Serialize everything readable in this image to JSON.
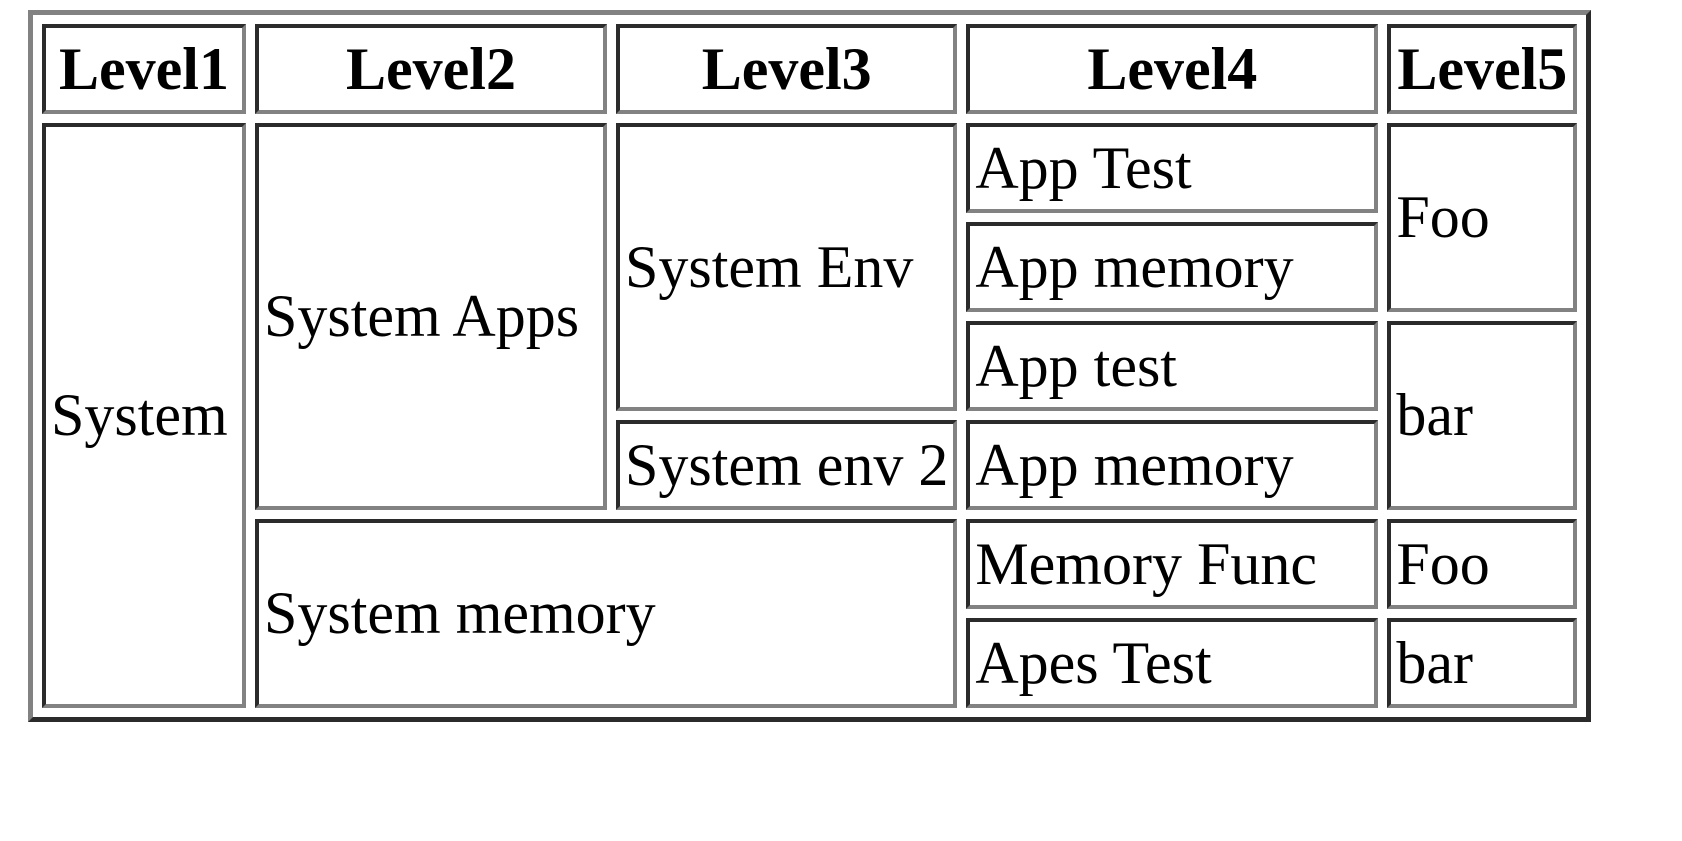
{
  "table": {
    "headers": [
      "Level1",
      "Level2",
      "Level3",
      "Level4",
      "Level5"
    ],
    "rows": [
      {
        "cells": [
          "System",
          "System Apps",
          "System Env",
          "App Test",
          "Foo"
        ]
      },
      {
        "cells": [
          "App memory"
        ]
      },
      {
        "cells": [
          "App test",
          "bar"
        ]
      },
      {
        "cells": [
          "System env 2",
          "App memory"
        ]
      },
      {
        "cells": [
          "System memory",
          "Memory Func",
          "Foo"
        ]
      },
      {
        "cells": [
          "Apes Test",
          "bar"
        ]
      }
    ]
  },
  "colors": {
    "cell_border_dark": "#2b2b2b",
    "cell_border_light": "#828282",
    "text": "#000000",
    "background": "#ffffff"
  }
}
